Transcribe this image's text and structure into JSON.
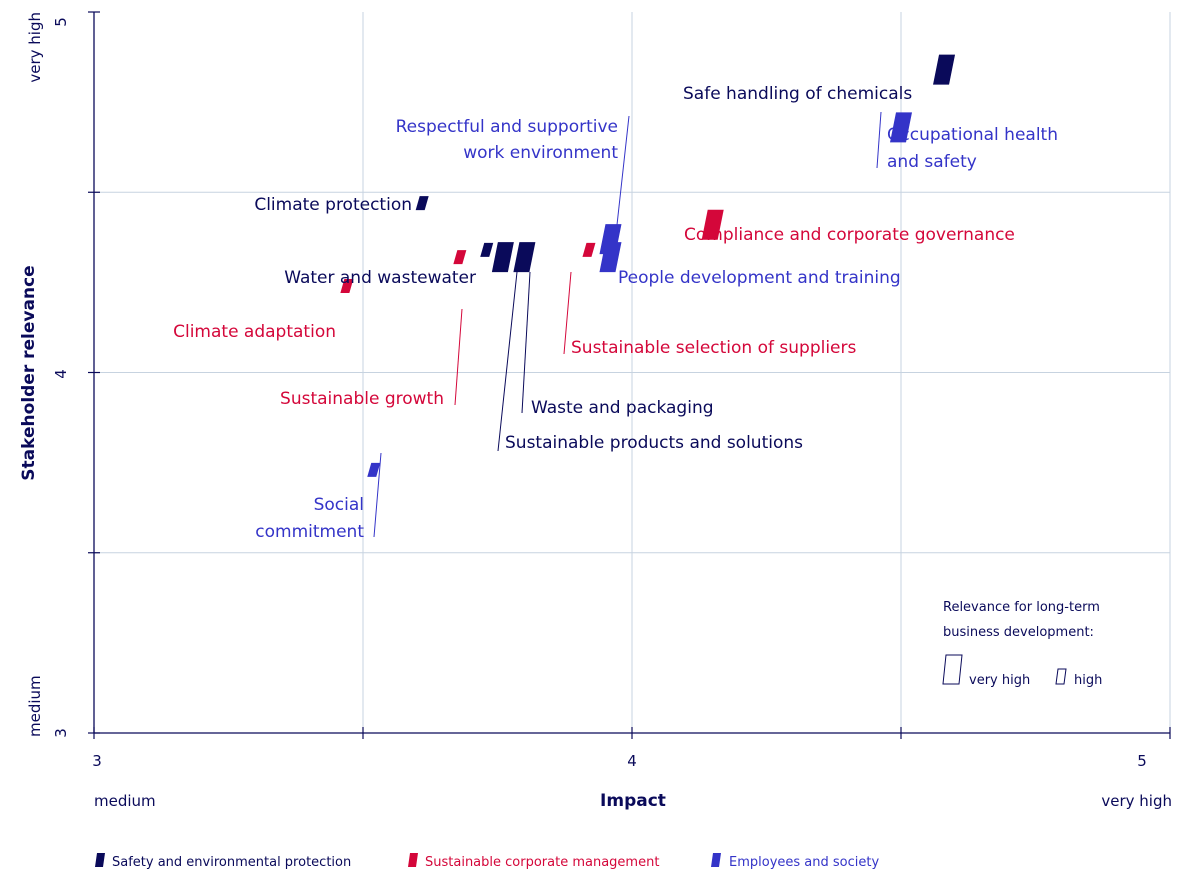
{
  "chart_data": {
    "type": "scatter",
    "title": "",
    "xlabel": "Impact",
    "ylabel": "Stakeholder relevance",
    "xlim": [
      3,
      5
    ],
    "ylim": [
      3,
      5
    ],
    "x_ticks": [
      "3",
      "4",
      "5"
    ],
    "y_ticks": [
      "3",
      "4",
      "5"
    ],
    "x_low_label": "medium",
    "x_high_label": "very high",
    "y_low_label": "medium",
    "y_high_label": "very high",
    "grid": true,
    "legend_position": "bottom",
    "series": [
      {
        "name": "Safety and environmental protection",
        "color": "#0a0a5a",
        "points": [
          {
            "label": "Safe handling of chemicals",
            "x": 4.58,
            "y": 4.84,
            "size": "very high"
          },
          {
            "label": "Climate protection",
            "x": 3.61,
            "y": 4.47,
            "size": "high"
          },
          {
            "label": "Water and wastewater",
            "x": 3.73,
            "y": 4.34,
            "size": "high"
          },
          {
            "label": "Waste and packaging",
            "x": 3.8,
            "y": 4.32,
            "size": "very high"
          },
          {
            "label": "Sustainable products and solutions",
            "x": 3.76,
            "y": 4.32,
            "size": "very high"
          }
        ]
      },
      {
        "name": "Sustainable corporate management",
        "color": "#d4073a",
        "points": [
          {
            "label": "Compliance and corporate governance",
            "x": 4.15,
            "y": 4.41,
            "size": "very high"
          },
          {
            "label": "Climate adaptation",
            "x": 3.47,
            "y": 4.24,
            "size": "high"
          },
          {
            "label": "Sustainable growth",
            "x": 3.68,
            "y": 4.32,
            "size": "high"
          },
          {
            "label": "Sustainable selection of suppliers",
            "x": 3.92,
            "y": 4.34,
            "size": "high"
          }
        ]
      },
      {
        "name": "Employees and society",
        "color": "#3434c8",
        "points": [
          {
            "label": "Occupational health and safety",
            "x": 4.5,
            "y": 4.68,
            "size": "very high"
          },
          {
            "label": "Respectful and supportive work environment",
            "x": 3.96,
            "y": 4.37,
            "size": "very high"
          },
          {
            "label": "People development and training",
            "x": 3.96,
            "y": 4.32,
            "size": "very high"
          },
          {
            "label": "Social commitment",
            "x": 3.52,
            "y": 3.73,
            "size": "high"
          }
        ]
      }
    ],
    "size_legend": {
      "title_line1": "Relevance for long-term",
      "title_line2": "business development:",
      "very_high": "very high",
      "high": "high"
    }
  }
}
